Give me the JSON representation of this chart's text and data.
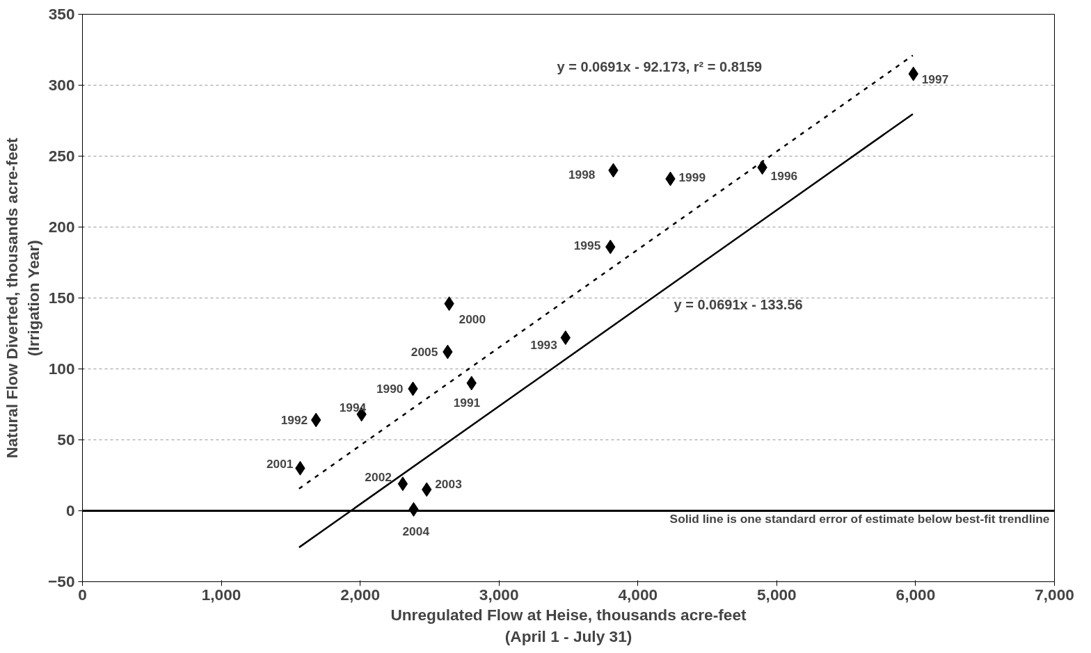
{
  "chart_data": {
    "type": "scatter",
    "xlabel": "Unregulated Flow at Heise, thousands acre-feet\n(April 1 - July 31)",
    "ylabel": "Natural Flow Diverted, thousands acre-feet\n(Irrigation Year)",
    "xlim": [
      0,
      7000
    ],
    "ylim": [
      -50,
      350
    ],
    "xticks": [
      0,
      {
        "value": 1000,
        "label": "1,000"
      },
      {
        "value": 2000,
        "label": "2,000"
      },
      {
        "value": 3000,
        "label": "3,000"
      },
      {
        "value": 4000,
        "label": "4,000"
      },
      {
        "value": 5000,
        "label": "5,000"
      },
      {
        "value": 6000,
        "label": "6,000"
      },
      {
        "value": 7000,
        "label": "7,000"
      }
    ],
    "yticks": [
      -50,
      0,
      50,
      100,
      150,
      200,
      250,
      300,
      350
    ],
    "grid": "y",
    "series": [
      {
        "color": "#000000",
        "x": [
          5984,
          3823,
          4234,
          4896,
          3802,
          2641,
          3479,
          2630,
          2802,
          2380,
          2010,
          1682,
          1568,
          2307,
          2479,
          2385
        ],
        "values": [
          308,
          240,
          234,
          242,
          186,
          146,
          122,
          112,
          90,
          86,
          68,
          64,
          30,
          19,
          15,
          1
        ],
        "marker": "diamond"
      },
      {
        "type": "line",
        "color": "#000000",
        "line_style": "dashed",
        "x": [
          1560,
          5980
        ],
        "values": [
          15.6,
          321.0
        ]
      },
      {
        "type": "line",
        "color": "#000000",
        "line_style": "solid",
        "x": [
          1560,
          5980
        ],
        "values": [
          -25.8,
          279.7
        ]
      }
    ],
    "ref_lines": [
      {
        "axis": "y",
        "value": 0,
        "color": "#000000"
      }
    ],
    "annotations": [
      {
        "text": "1997",
        "x": 5984,
        "y": 308
      },
      {
        "text": "1998",
        "x": 3823,
        "y": 240
      },
      {
        "text": "1999",
        "x": 4234,
        "y": 234
      },
      {
        "text": "1996",
        "x": 4896,
        "y": 242
      },
      {
        "text": "1995",
        "x": 3802,
        "y": 186
      },
      {
        "text": "2000",
        "x": 2641,
        "y": 146
      },
      {
        "text": "1993",
        "x": 3479,
        "y": 122
      },
      {
        "text": "2005",
        "x": 2630,
        "y": 112
      },
      {
        "text": "1991",
        "x": 2802,
        "y": 90
      },
      {
        "text": "1990",
        "x": 2380,
        "y": 86
      },
      {
        "text": "1994",
        "x": 2010,
        "y": 68
      },
      {
        "text": "1992",
        "x": 1682,
        "y": 64
      },
      {
        "text": "2001",
        "x": 1568,
        "y": 30
      },
      {
        "text": "2002",
        "x": 2307,
        "y": 19
      },
      {
        "text": "2003",
        "x": 2479,
        "y": 15
      },
      {
        "text": "2004",
        "x": 2385,
        "y": 1
      },
      "y = 0.0691x - 92.173, r² = 0.8159",
      "y = 0.0691x - 133.56",
      "Solid line is one standard error of estimate below best-fit trendline"
    ]
  }
}
